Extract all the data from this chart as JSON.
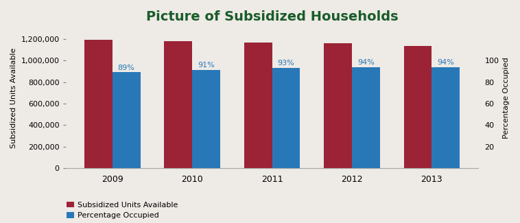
{
  "title": "Picture of Subsidized Households",
  "years": [
    2009,
    2010,
    2011,
    2012,
    2013
  ],
  "units_available": [
    1195000,
    1180000,
    1168000,
    1160000,
    1133000
  ],
  "pct_occupied": [
    89,
    91,
    93,
    94,
    94
  ],
  "pct_labels": [
    "89%",
    "91%",
    "93%",
    "94%",
    "94%"
  ],
  "bar_color_units": "#9b2335",
  "bar_color_pct": "#2878b8",
  "title_color": "#1a5c2a",
  "pct_label_color": "#2878b8",
  "ylabel_left": "Subsidized Units Available",
  "ylabel_right": "Percentage Occupied",
  "ylim_left": [
    0,
    1300000
  ],
  "ylim_right": [
    0,
    130
  ],
  "yticks_left": [
    0,
    200000,
    400000,
    600000,
    800000,
    1000000,
    1200000
  ],
  "yticks_right": [
    20,
    40,
    60,
    80,
    100
  ],
  "legend_labels": [
    "Subsidized Units Available",
    "Percentage Occupied"
  ],
  "background_color": "#eeeae6",
  "bar_width": 0.35,
  "title_fontsize": 14,
  "axis_label_fontsize": 8,
  "tick_fontsize": 8,
  "legend_fontsize": 8,
  "annotation_fontsize": 8
}
